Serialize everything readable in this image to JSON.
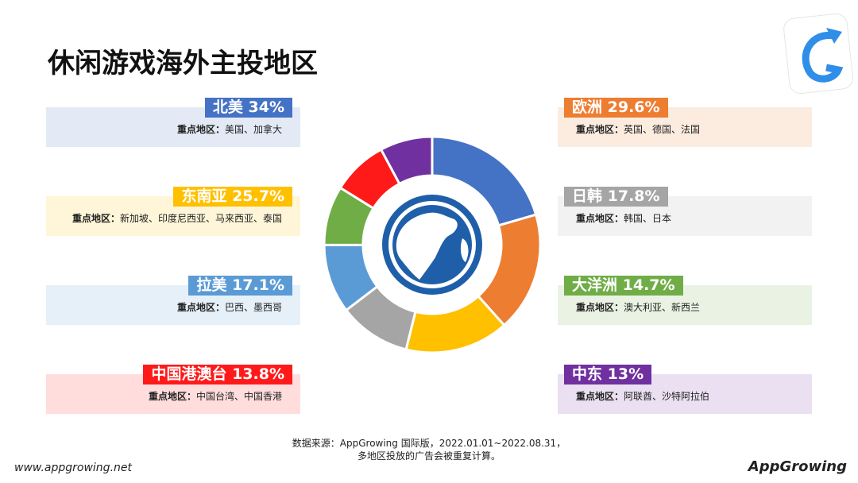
{
  "header": {
    "title": "休闲游戏海外主投地区"
  },
  "chart_data": {
    "type": "donut",
    "categories": [
      "北美",
      "欧洲",
      "东南亚",
      "日韩",
      "拉美",
      "大洋洲",
      "中国港澳台",
      "中东"
    ],
    "values": [
      34,
      29.6,
      25.7,
      17.8,
      17.1,
      14.7,
      13.8,
      13
    ],
    "value_labels": [
      "34%",
      "29.6%",
      "25.7%",
      "17.8%",
      "17.1%",
      "14.7%",
      "13.8%",
      "13%"
    ],
    "colors": [
      "#4472c4",
      "#ed7d31",
      "#ffc000",
      "#a5a5a5",
      "#5b9bd5",
      "#70ad47",
      "#ff1a1a",
      "#7030a0"
    ],
    "detail_label": "重点地区：",
    "details": [
      "美国、加拿大",
      "英国、德国、法国",
      "新加坡、印度尼西亚、马来西亚、泰国",
      "韩国、日本",
      "巴西、墨西哥",
      "澳大利亚、新西兰",
      "中国台湾、中国香港",
      "阿联酋、沙特阿拉伯"
    ]
  },
  "footer": {
    "source_line1": "数据来源：AppGrowing 国际版，2022.01.01~2022.08.31，",
    "source_line2": "多地区投放的广告会被重复计算。",
    "website": "www.appgrowing.net",
    "brand": "AppGrowing"
  }
}
